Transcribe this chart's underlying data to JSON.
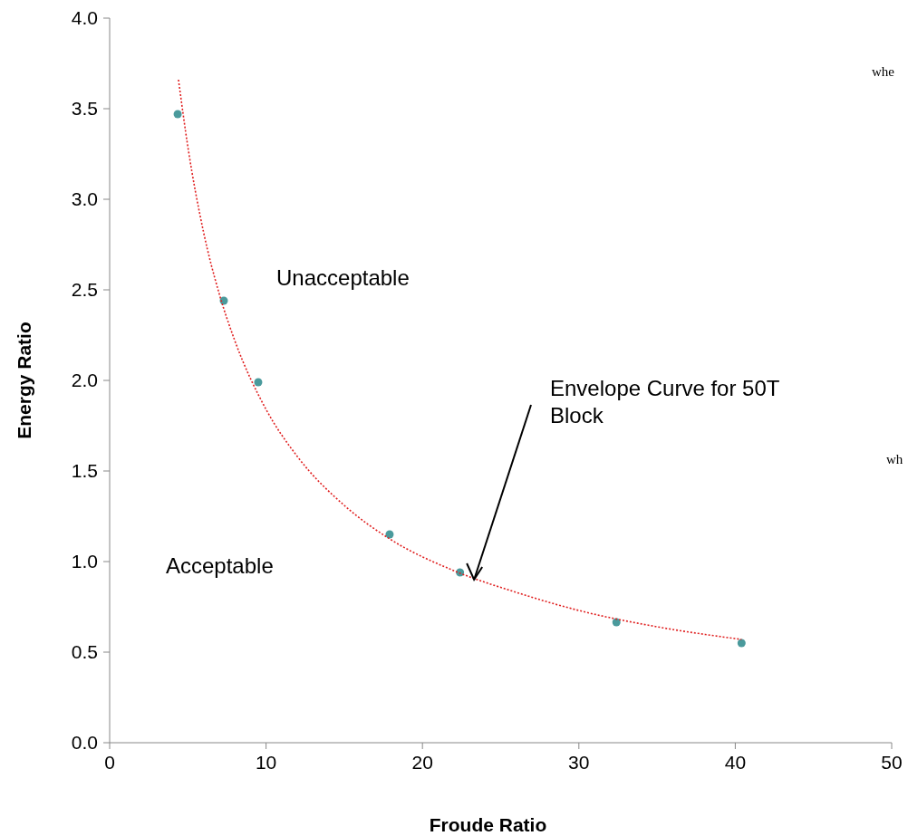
{
  "chart_data": {
    "type": "scatter",
    "xlabel": "Froude Ratio",
    "ylabel": "Energy Ratio",
    "xlim": [
      0,
      50
    ],
    "xticks": [
      0,
      10,
      20,
      30,
      40,
      50
    ],
    "ylim": [
      0,
      4
    ],
    "yticks": [
      {
        "value": 0,
        "label": "0.0"
      },
      {
        "value": 0.5,
        "label": "0.5"
      },
      {
        "value": 1,
        "label": "1.0"
      },
      {
        "value": 1.5,
        "label": "1.5"
      },
      {
        "value": 2,
        "label": "2.0"
      },
      {
        "value": 2.5,
        "label": "2.5"
      },
      {
        "value": 3,
        "label": "3.0"
      },
      {
        "value": 3.5,
        "label": "3.5"
      },
      {
        "value": 4,
        "label": "4.0"
      }
    ],
    "grid": false,
    "marker": "circle",
    "series": [
      {
        "color": "#4a9a9c",
        "x": [
          4.35,
          7.3,
          9.5,
          17.9,
          22.4,
          32.4,
          40.4
        ],
        "values": [
          3.47,
          2.44,
          1.99,
          1.15,
          0.94,
          0.665,
          0.55
        ]
      },
      {
        "type": "line",
        "color": "#e02020",
        "line_style": "dotted",
        "marker": "none",
        "x": [
          4.4,
          5,
          6,
          7,
          8,
          10,
          12,
          15,
          18,
          22,
          26,
          30,
          35,
          40.4
        ],
        "values": [
          3.66,
          3.29,
          2.82,
          2.48,
          2.22,
          1.84,
          1.58,
          1.31,
          1.12,
          0.95,
          0.83,
          0.73,
          0.64,
          0.57
        ]
      }
    ],
    "annotations": [
      "Unacceptable",
      "Acceptable",
      {
        "text": "Envelope Curve for 50T Block",
        "x": 23.3,
        "y": 0.9
      },
      "whe",
      "wh"
    ]
  }
}
